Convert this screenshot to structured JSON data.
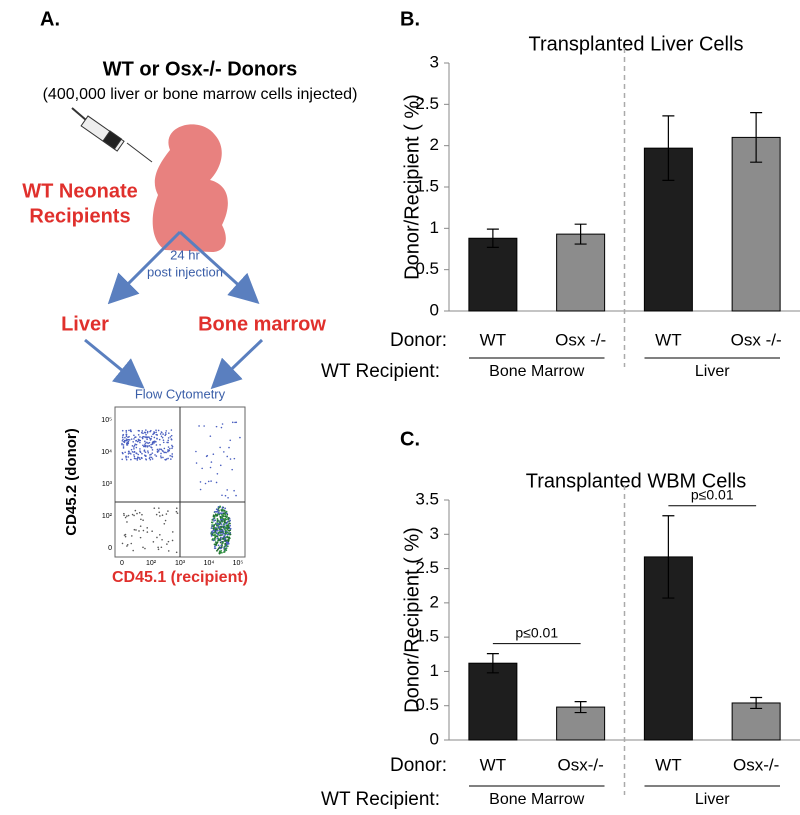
{
  "panel_a": {
    "label": "A.",
    "title": "WT or Osx-/- Donors",
    "subtitle": "(400,000 liver or bone marrow cells injected)",
    "recipient_line1": "WT Neonate",
    "recipient_line2": "Recipients",
    "time_line1": "24 hr",
    "time_line2": "post injection",
    "left_branch": "Liver",
    "right_branch": "Bone marrow",
    "assay": "Flow Cytometry",
    "flow_ylabel": "CD45.2 (donor)",
    "flow_xlabel": "CD45.1 (recipient)",
    "flow_yticks": [
      "10⁵",
      "10⁴",
      "10³",
      "10²",
      "0"
    ],
    "flow_xticks": [
      "0",
      "10²",
      "10³",
      "10⁴",
      "10⁵"
    ]
  },
  "chart_data": [
    {
      "type": "bar",
      "panel": "B.",
      "title": "Transplanted Liver Cells",
      "ylabel": "Donor/Recipient ( %)",
      "row_labels": [
        "Donor:",
        "WT Recipient:"
      ],
      "categories": [
        "WT",
        "Osx -/-",
        "WT",
        "Osx -/-"
      ],
      "groups": [
        "Bone Marrow",
        "Liver"
      ],
      "values": [
        0.88,
        0.93,
        1.97,
        2.1
      ],
      "errors": [
        0.11,
        0.12,
        0.39,
        0.3
      ],
      "colors": [
        "#1e1e1e",
        "#8c8c8c",
        "#1e1e1e",
        "#8c8c8c"
      ],
      "ylim": [
        0,
        3
      ],
      "yticks": [
        0,
        0.5,
        1,
        1.5,
        2,
        2.5,
        3
      ]
    },
    {
      "type": "bar",
      "panel": "C.",
      "title": "Transplanted WBM Cells",
      "ylabel": "Donor/Recipient ( %)",
      "row_labels": [
        "Donor:",
        "WT Recipient:"
      ],
      "categories": [
        "WT",
        "Osx-/-",
        "WT",
        "Osx-/-"
      ],
      "groups": [
        "Bone Marrow",
        "Liver"
      ],
      "values": [
        1.12,
        0.48,
        2.67,
        0.54
      ],
      "errors": [
        0.14,
        0.08,
        0.6,
        0.08
      ],
      "colors": [
        "#1e1e1e",
        "#8c8c8c",
        "#1e1e1e",
        "#8c8c8c"
      ],
      "annotations": [
        "p≤0.01",
        "p≤0.01"
      ],
      "ylim": [
        0,
        3.5
      ],
      "yticks": [
        0,
        0.5,
        1,
        1.5,
        2,
        2.5,
        3,
        3.5
      ]
    }
  ]
}
